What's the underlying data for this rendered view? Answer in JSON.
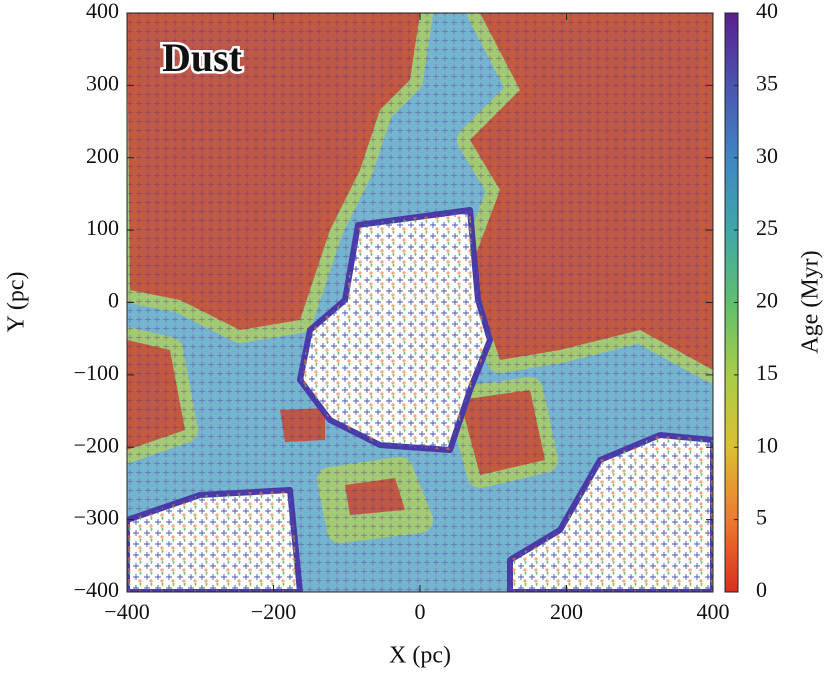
{
  "chart_data": {
    "type": "heatmap",
    "annotation": "Dust",
    "xlabel": "X (pc)",
    "ylabel": "Y (pc)",
    "xlim": [
      -400,
      400
    ],
    "ylim": [
      -400,
      400
    ],
    "xticks": [
      {
        "value": -400,
        "label": "−400"
      },
      {
        "value": -200,
        "label": "−200"
      },
      0,
      200,
      400
    ],
    "yticks": [
      {
        "value": -400,
        "label": "−400"
      },
      {
        "value": -300,
        "label": "−300"
      },
      {
        "value": -200,
        "label": "−200"
      },
      {
        "value": -100,
        "label": "−100"
      },
      0,
      100,
      200,
      300,
      400
    ],
    "colorbar": {
      "label": "Age (Myr)",
      "lim": [
        0,
        40
      ],
      "ticks": [
        0,
        5,
        10,
        15,
        20,
        25,
        30,
        35,
        40
      ],
      "colors": [
        "#d7301f",
        "#ee7a2e",
        "#dcbf34",
        "#a8cd48",
        "#5fbf6e",
        "#3fa7a8",
        "#3f86c4",
        "#4a55b0",
        "#5a1f8f"
      ]
    }
  }
}
